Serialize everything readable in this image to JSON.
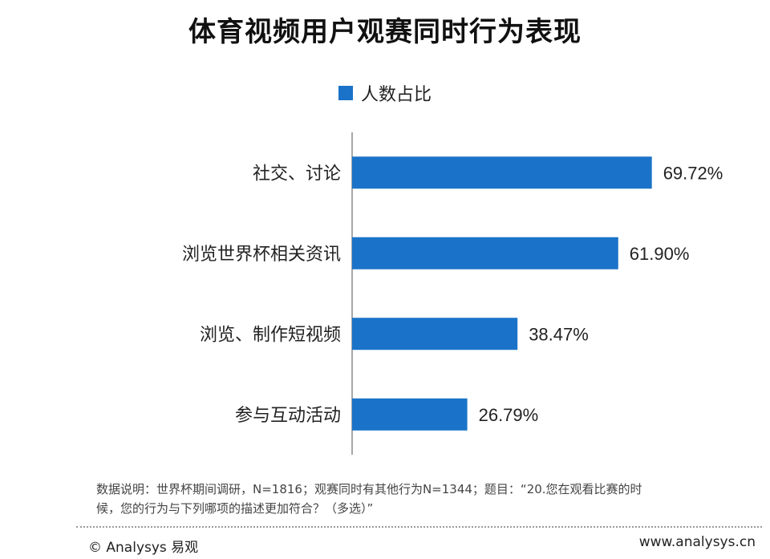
{
  "title": "体育视频用户观赛同时行为表现",
  "legend": {
    "label": "人数占比",
    "color": "#1a73c8"
  },
  "chart_data": {
    "type": "bar",
    "orientation": "horizontal",
    "categories": [
      "社交、讨论",
      "浏览世界杯相关资讯",
      "浏览、制作短视频",
      "参与互动活动"
    ],
    "series": [
      {
        "name": "人数占比",
        "values": [
          69.72,
          61.9,
          38.47,
          26.79
        ],
        "color": "#1a73c8"
      }
    ],
    "value_labels": [
      "69.72%",
      "61.90%",
      "38.47%",
      "26.79%"
    ],
    "xlim": [
      0,
      100
    ],
    "legend_position": "top-center",
    "grid": false
  },
  "footnote": {
    "line1": "数据说明：世界杯期间调研，N=1816；观赛同时有其他行为N=1344；题目：“20.您在观看比赛的时",
    "line2": "候，您的行为与下列哪项的描述更加符合？（多选）”"
  },
  "footer": {
    "copyright": "© Analysys 易观",
    "website": "www.analysys.cn"
  }
}
